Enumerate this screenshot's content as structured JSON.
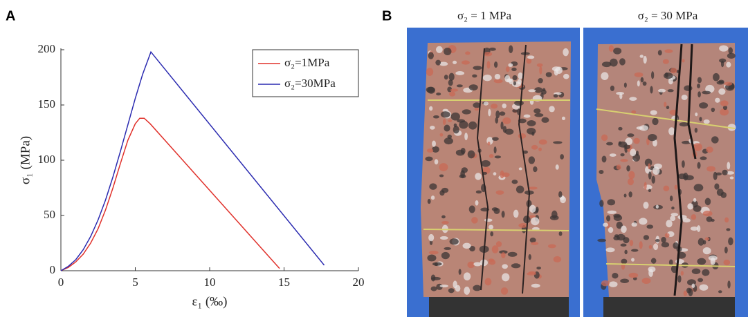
{
  "panel_labels": [
    "A",
    "B"
  ],
  "chart_data": {
    "type": "line",
    "xlabel": "ε₁ (‰)",
    "ylabel": "σ₁ (MPa)",
    "xlim": [
      0,
      20
    ],
    "xticks": [
      0,
      5,
      10,
      15,
      20
    ],
    "ylim": [
      0,
      200
    ],
    "yticks": [
      0,
      50,
      100,
      150,
      200
    ],
    "legend": "upper right",
    "grid": false,
    "series": [
      {
        "name": "σ₂=1MPa",
        "color": "#e0302a",
        "x": [
          0,
          0.5,
          1,
          1.5,
          2,
          2.5,
          3,
          3.5,
          4,
          4.5,
          5,
          5.3,
          5.6,
          6,
          14.7
        ],
        "values": [
          0,
          3,
          8,
          15,
          25,
          38,
          55,
          75,
          97,
          118,
          133,
          138,
          138,
          133,
          2
        ]
      },
      {
        "name": "σ₂=30MPa",
        "color": "#2a2ab0",
        "x": [
          0,
          0.5,
          1,
          1.5,
          2,
          2.5,
          3,
          3.5,
          4,
          4.5,
          5,
          5.5,
          6.05,
          17.7
        ],
        "values": [
          0,
          4,
          10,
          19,
          31,
          46,
          64,
          85,
          108,
          132,
          156,
          178,
          198,
          5
        ]
      }
    ]
  },
  "photos": {
    "titles": [
      "σ₂ = 1 MPa",
      "σ₂ = 30 MPa"
    ]
  }
}
